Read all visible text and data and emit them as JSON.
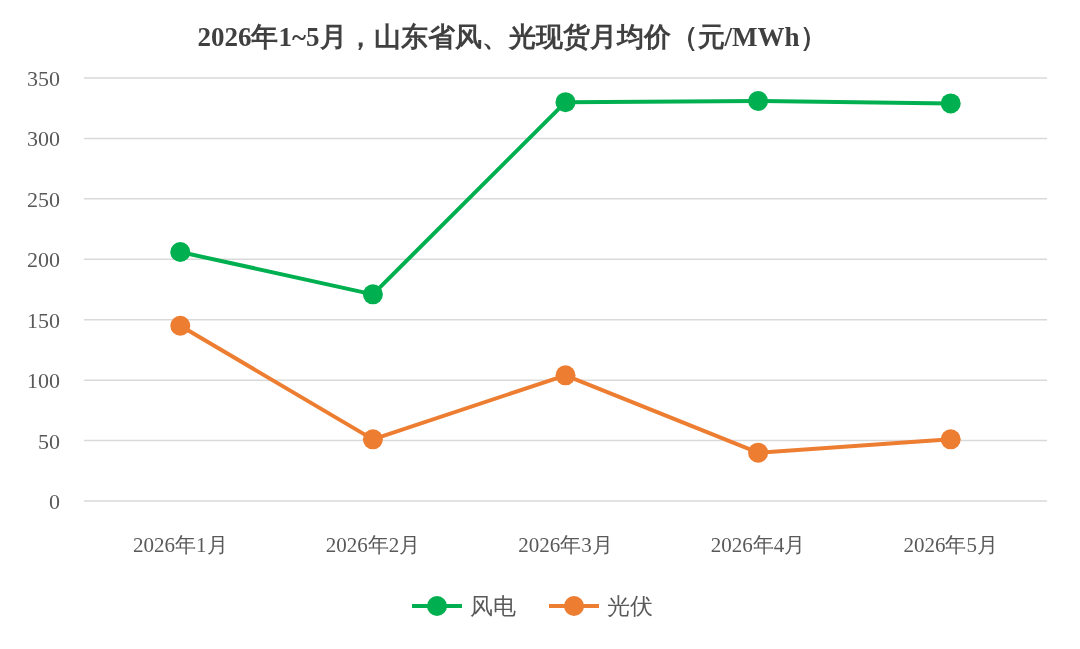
{
  "chart_data": {
    "type": "line",
    "title": "2026年1~5月，山东省风、光现货月均价（元/MWh）",
    "categories": [
      "2026年1月",
      "2026年2月",
      "2026年3月",
      "2026年4月",
      "2026年5月"
    ],
    "series": [
      {
        "name": "风电",
        "color": "#00b050",
        "values": [
          206,
          171,
          330,
          331,
          329
        ]
      },
      {
        "name": "光伏",
        "color": "#ed7d31",
        "values": [
          145,
          51,
          104,
          40,
          51
        ]
      }
    ],
    "ylim": [
      0,
      350
    ],
    "yticks": [
      0,
      50,
      100,
      150,
      200,
      250,
      300,
      350
    ],
    "grid": "y",
    "legend": "bottom",
    "marker": "circle",
    "line_style": "solid"
  }
}
